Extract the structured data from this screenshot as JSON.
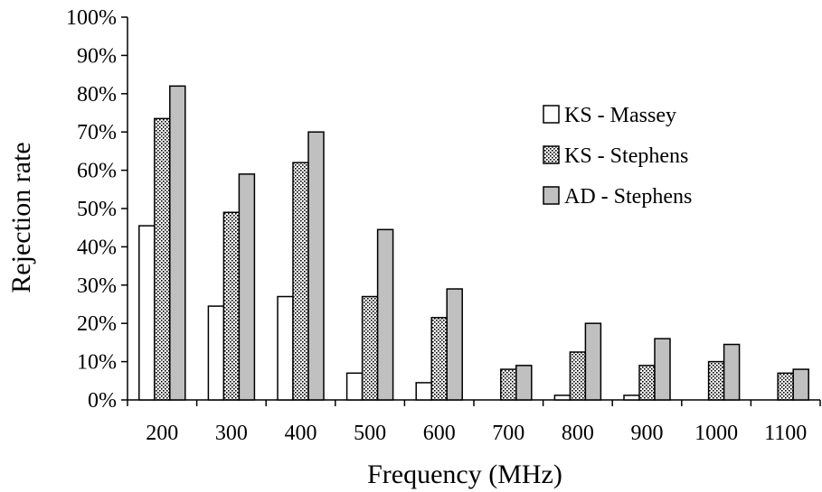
{
  "chart_data": {
    "type": "bar",
    "categories": [
      "200",
      "300",
      "400",
      "500",
      "600",
      "700",
      "800",
      "900",
      "1000",
      "1100"
    ],
    "series": [
      {
        "name": "KS - Massey",
        "values": [
          45.5,
          24.5,
          27.0,
          7.0,
          4.5,
          0.0,
          1.2,
          1.2,
          0.0,
          0.0
        ],
        "pattern": "solid",
        "fill": "#ffffff"
      },
      {
        "name": "KS - Stephens",
        "values": [
          73.5,
          49.0,
          62.0,
          27.0,
          21.5,
          8.0,
          12.5,
          9.0,
          10.0,
          7.0
        ],
        "pattern": "dots",
        "fill": "#ffffff"
      },
      {
        "name": "AD - Stephens",
        "values": [
          82.0,
          59.0,
          70.0,
          44.5,
          29.0,
          9.0,
          20.0,
          16.0,
          14.5,
          8.0
        ],
        "pattern": "solid",
        "fill": "#c0c0c0"
      }
    ],
    "xlabel": "Frequency (MHz)",
    "ylabel": "Rejection rate",
    "ylim": [
      0,
      100
    ],
    "yticks": [
      "0%",
      "10%",
      "20%",
      "30%",
      "40%",
      "50%",
      "60%",
      "70%",
      "80%",
      "90%",
      "100%"
    ],
    "grid": false,
    "legend_position": "right"
  }
}
